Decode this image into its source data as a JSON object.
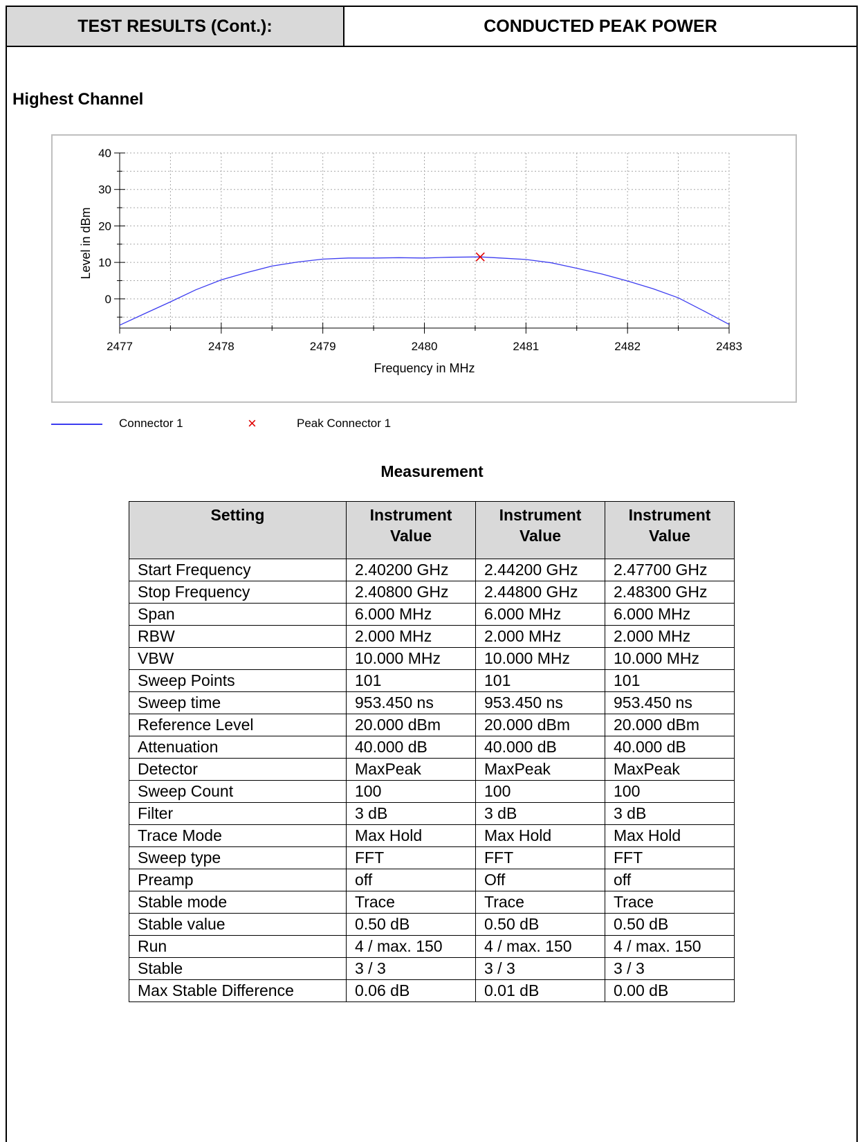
{
  "header": {
    "left": "TEST RESULTS (Cont.):",
    "right": "CONDUCTED PEAK POWER"
  },
  "section_title": "Highest Channel",
  "legend": {
    "series_label": "Connector 1",
    "peak_label": "Peak Connector 1",
    "peak_marker": "×"
  },
  "colors": {
    "series": "#3c3cf0",
    "peak": "#e00000",
    "grid": "#a6a6a6"
  },
  "chart_data": {
    "type": "line",
    "xlabel": "Frequency in MHz",
    "ylabel": "Level in dBm",
    "xlim": [
      2477,
      2483
    ],
    "ylim": [
      -8,
      40
    ],
    "x_ticks": [
      "2477",
      "2478",
      "2479",
      "2480",
      "2481",
      "2482",
      "2483"
    ],
    "y_ticks": [
      "0",
      "10",
      "20",
      "30",
      "40"
    ],
    "grid": true,
    "series": [
      {
        "name": "Connector 1",
        "x": [
          2477.0,
          2477.25,
          2477.5,
          2477.75,
          2478.0,
          2478.25,
          2478.5,
          2478.75,
          2479.0,
          2479.25,
          2479.5,
          2479.75,
          2480.0,
          2480.25,
          2480.55,
          2480.75,
          2481.0,
          2481.25,
          2481.5,
          2481.75,
          2482.0,
          2482.25,
          2482.5,
          2482.75,
          2483.0
        ],
        "y": [
          -7.2,
          -4.0,
          -0.8,
          2.5,
          5.2,
          7.2,
          9.0,
          10.1,
          10.9,
          11.2,
          11.2,
          11.3,
          11.2,
          11.4,
          11.5,
          11.2,
          10.8,
          9.9,
          8.4,
          6.8,
          4.9,
          2.8,
          0.3,
          -3.3,
          -7.0
        ]
      }
    ],
    "peak": {
      "name": "Peak Connector 1",
      "x": 2480.55,
      "y": 11.5
    }
  },
  "table": {
    "title": "Measurement",
    "headers": [
      "Setting",
      "Instrument Value",
      "Instrument Value",
      "Instrument Value"
    ],
    "rows": [
      [
        "Start Frequency",
        "2.40200 GHz",
        "2.44200 GHz",
        "2.47700 GHz"
      ],
      [
        "Stop Frequency",
        "2.40800 GHz",
        "2.44800 GHz",
        "2.48300 GHz"
      ],
      [
        "Span",
        "6.000 MHz",
        "6.000 MHz",
        "6.000 MHz"
      ],
      [
        "RBW",
        "2.000 MHz",
        "2.000 MHz",
        "2.000 MHz"
      ],
      [
        "VBW",
        "10.000 MHz",
        "10.000 MHz",
        "10.000 MHz"
      ],
      [
        "Sweep Points",
        "101",
        "101",
        "101"
      ],
      [
        "Sweep time",
        "953.450 ns",
        "953.450 ns",
        "953.450 ns"
      ],
      [
        "Reference Level",
        "20.000 dBm",
        "20.000 dBm",
        "20.000 dBm"
      ],
      [
        "Attenuation",
        "40.000 dB",
        "40.000 dB",
        "40.000 dB"
      ],
      [
        "Detector",
        "MaxPeak",
        "MaxPeak",
        "MaxPeak"
      ],
      [
        "Sweep Count",
        "100",
        "100",
        "100"
      ],
      [
        "Filter",
        "3 dB",
        "3 dB",
        "3 dB"
      ],
      [
        "Trace Mode",
        "Max Hold",
        "Max Hold",
        "Max Hold"
      ],
      [
        "Sweep type",
        "FFT",
        "FFT",
        "FFT"
      ],
      [
        "Preamp",
        "off",
        "Off",
        "off"
      ],
      [
        "Stable mode",
        "Trace",
        "Trace",
        "Trace"
      ],
      [
        "Stable value",
        "0.50 dB",
        "0.50 dB",
        "0.50 dB"
      ],
      [
        "Run",
        "4 / max. 150",
        "4 / max. 150",
        "4 / max. 150"
      ],
      [
        "Stable",
        "3 / 3",
        "3 / 3",
        "3 / 3"
      ],
      [
        "Max Stable Difference",
        "0.06 dB",
        "0.01 dB",
        "0.00 dB"
      ]
    ]
  }
}
